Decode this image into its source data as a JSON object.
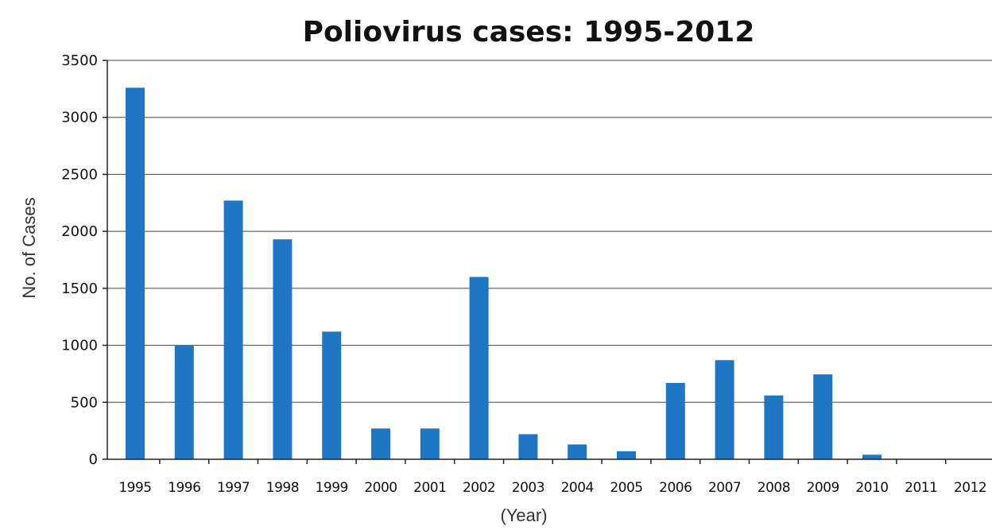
{
  "chart_data": {
    "type": "bar",
    "title": "Poliovirus cases: 1995-2012",
    "xlabel": "(Year)",
    "ylabel": "No. of Cases",
    "categories": [
      "1995",
      "1996",
      "1997",
      "1998",
      "1999",
      "2000",
      "2001",
      "2002",
      "2003",
      "2004",
      "2005",
      "2006",
      "2007",
      "2008",
      "2009",
      "2010",
      "2011",
      "2012"
    ],
    "values": [
      3260,
      1000,
      2270,
      1930,
      1120,
      270,
      270,
      1600,
      220,
      130,
      70,
      670,
      870,
      560,
      745,
      40,
      0,
      0
    ],
    "ylim": [
      0,
      3500
    ],
    "yticks": [
      "0",
      "500",
      "1000",
      "1500",
      "2000",
      "2500",
      "3000",
      "3500"
    ],
    "grid": true,
    "legend": "none",
    "bar_color": "#1f77c4"
  }
}
